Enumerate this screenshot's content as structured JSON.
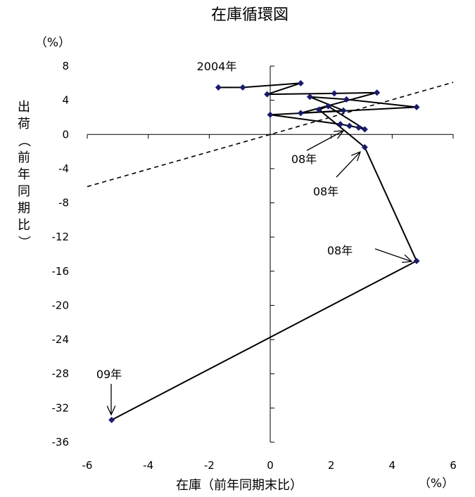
{
  "chart_data": {
    "type": "line",
    "title": "在庫循環図",
    "xlabel": "在庫（前年同期末比）",
    "ylabel": "出荷（前年同期比）",
    "x_unit": "（%）",
    "y_unit": "（%）",
    "xlim": [
      -6,
      6
    ],
    "ylim": [
      -36,
      8
    ],
    "x_ticks": [
      "-6",
      "-4",
      "-2",
      "0",
      "2",
      "4",
      "6"
    ],
    "y_ticks": [
      "8",
      "4",
      "0",
      "-4",
      "-8",
      "-12",
      "-16",
      "-20",
      "-24",
      "-28",
      "-32",
      "-36"
    ],
    "series": [
      {
        "x": [
          -1.7,
          -0.9,
          1.0,
          -0.1,
          2.1,
          3.5,
          1.0,
          2.4,
          1.3,
          2.5,
          4.8,
          0.0,
          2.3,
          2.6,
          2.9,
          3.1,
          1.9,
          1.6,
          3.1,
          4.8,
          -5.2
        ],
        "y": [
          5.5,
          5.5,
          6.0,
          4.7,
          4.8,
          4.9,
          2.5,
          2.8,
          4.4,
          4.1,
          3.2,
          2.3,
          1.2,
          1.0,
          0.8,
          0.6,
          3.3,
          2.9,
          -1.5,
          -14.8,
          -33.4
        ]
      }
    ],
    "reference_line": {
      "style": "dashed",
      "x": [
        -6,
        6
      ],
      "y": [
        -6.1,
        6.1
      ]
    },
    "annotations": [
      {
        "text": "2004年",
        "x": -1.7,
        "y": 5.5
      },
      {
        "text": "08年",
        "x": 2.4,
        "y": 0.4
      },
      {
        "text": "08年",
        "x": 3.0,
        "y": -1.9
      },
      {
        "text": "08年",
        "x": 4.7,
        "y": -14.8
      },
      {
        "text": "09年",
        "x": -5.2,
        "y": -33.0
      }
    ],
    "colors": {
      "marker": "#1a1a6e",
      "line": "#000000"
    }
  }
}
